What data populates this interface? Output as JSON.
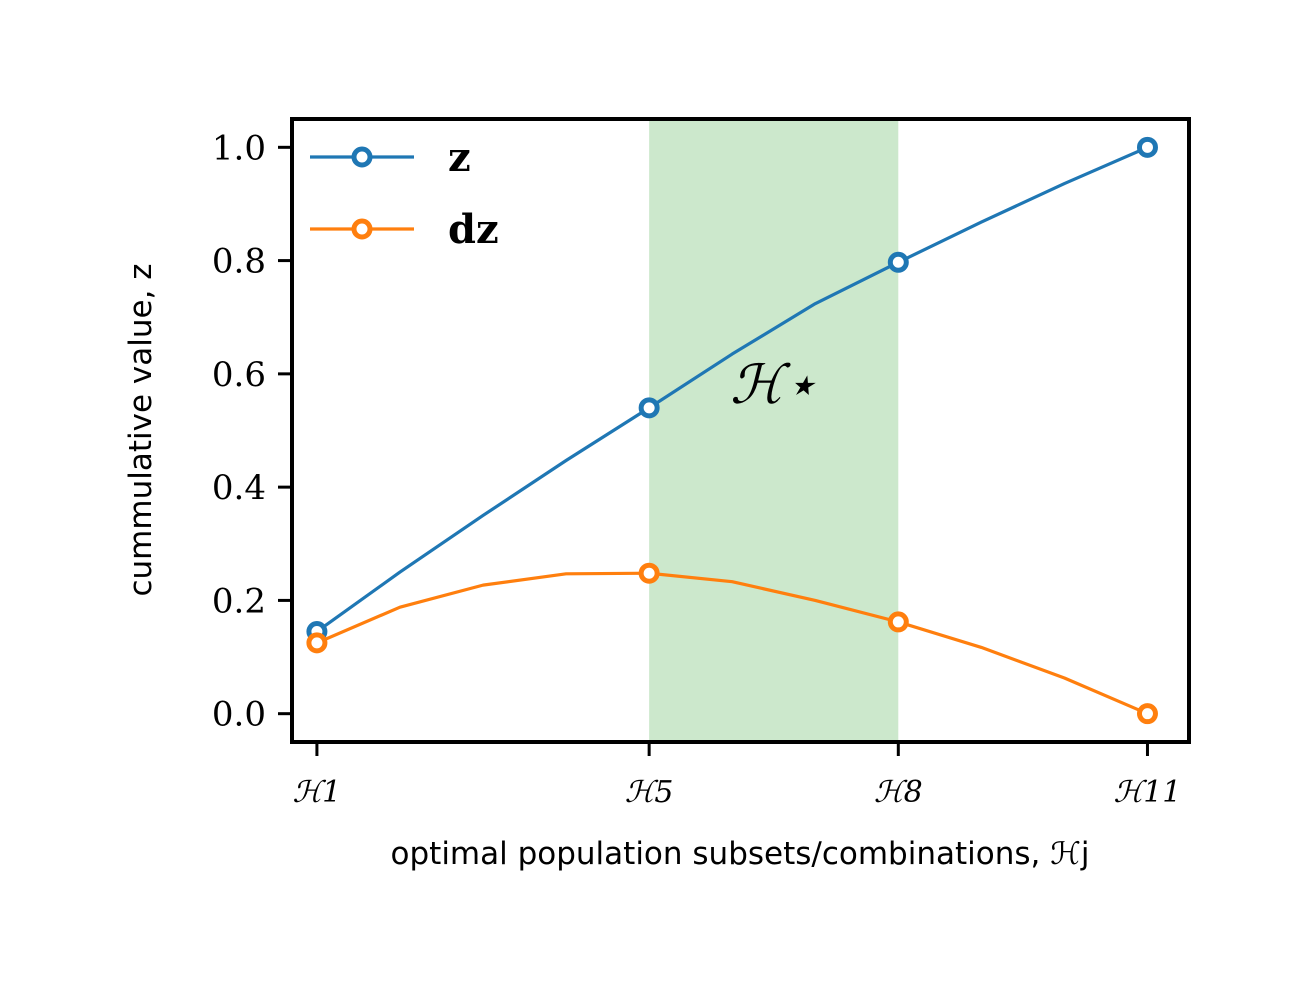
{
  "chart_data": {
    "type": "line",
    "title": "",
    "xlabel": "optimal population subsets/combinations, ℋj",
    "ylabel": "cummulative value, z",
    "x": [
      1,
      2,
      3,
      4,
      5,
      6,
      7,
      8,
      9,
      10,
      11
    ],
    "xlim": [
      0.7,
      11.5
    ],
    "ylim": [
      -0.05,
      1.05
    ],
    "xticks": [
      1,
      5,
      8,
      11
    ],
    "xtick_labels": [
      "ℋ1",
      "ℋ5",
      "ℋ8",
      "ℋ11"
    ],
    "yticks": [
      0.0,
      0.2,
      0.4,
      0.6,
      0.8,
      1.0
    ],
    "ytick_labels": [
      "0.0",
      "0.2",
      "0.4",
      "0.6",
      "0.8",
      "1.0"
    ],
    "series": [
      {
        "name": "z",
        "color": "#1f77b4",
        "values": [
          0.145,
          0.25,
          0.35,
          0.447,
          0.54,
          0.635,
          0.724,
          0.797,
          0.868,
          0.936,
          1.0
        ],
        "markers_at": [
          1,
          5,
          8,
          11
        ]
      },
      {
        "name": "dz",
        "color": "#ff7f0e",
        "values": [
          0.125,
          0.188,
          0.227,
          0.247,
          0.248,
          0.233,
          0.2,
          0.162,
          0.117,
          0.063,
          0.0
        ],
        "markers_at": [
          1,
          5,
          8,
          11
        ]
      }
    ],
    "shaded_region": {
      "x_start": 5,
      "x_end": 8,
      "color": "#cce8cc"
    },
    "annotation": {
      "text": "ℋ⋆",
      "x": 6.5,
      "y": 0.58
    },
    "legend": "top-left",
    "grid": false
  }
}
